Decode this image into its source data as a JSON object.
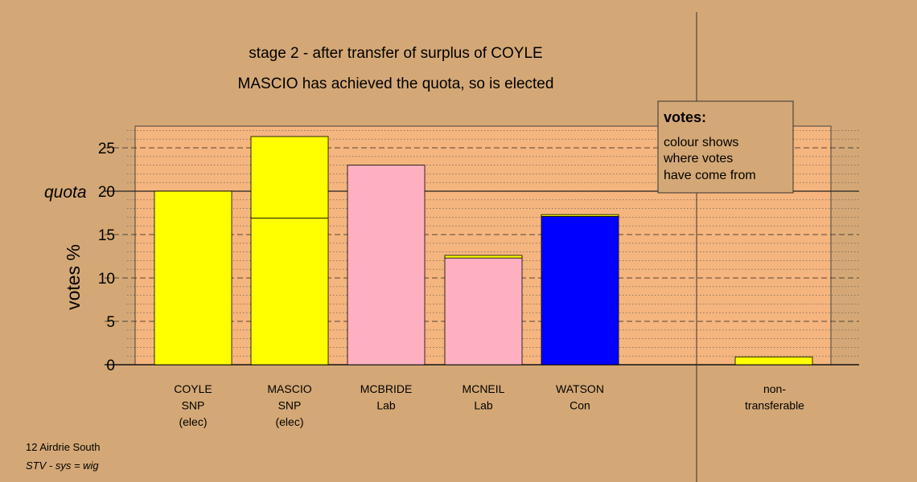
{
  "chart_data": {
    "type": "bar",
    "title": "stage 2 - after transfer of surplus of COYLE",
    "subtitle": "MASCIO has achieved the quota, so is elected",
    "ylabel": "votes %",
    "ylim": [
      0,
      27.5
    ],
    "yticks": [
      0,
      5,
      10,
      15,
      20,
      25
    ],
    "quota_label": "quota",
    "quota_value": 20,
    "grid": "horizontal dotted minor, dashed major",
    "categories": [
      {
        "name": "COYLE",
        "party": "SNP",
        "note": "(elec)"
      },
      {
        "name": "MASCIO",
        "party": "SNP",
        "note": "(elec)"
      },
      {
        "name": "MCBRIDE",
        "party": "Lab",
        "note": ""
      },
      {
        "name": "MCNEIL",
        "party": "Lab",
        "note": ""
      },
      {
        "name": "WATSON",
        "party": "Con",
        "note": ""
      }
    ],
    "nontransferable_label": [
      "non-",
      "transferable"
    ],
    "bars": [
      {
        "segments": [
          {
            "value": 20.0,
            "color": "#ffff00"
          }
        ]
      },
      {
        "segments": [
          {
            "value": 16.9,
            "color": "#ffff00"
          },
          {
            "value": 9.4,
            "color": "#ffff00"
          }
        ]
      },
      {
        "segments": [
          {
            "value": 23.0,
            "color": "#ffb0c0"
          }
        ]
      },
      {
        "segments": [
          {
            "value": 12.3,
            "color": "#ffb0c0"
          },
          {
            "value": 0.3,
            "color": "#ffff00"
          }
        ]
      },
      {
        "segments": [
          {
            "value": 17.1,
            "color": "#0000ff"
          },
          {
            "value": 0.2,
            "color": "#ffff00"
          }
        ]
      }
    ],
    "nontransferable": {
      "value": 0.9,
      "color": "#ffff00"
    },
    "legend": {
      "heading": "votes:",
      "lines": [
        "colour shows",
        "where votes",
        "have come from"
      ],
      "position": "top-right"
    },
    "colors": {
      "background": "#d4a876",
      "plot_area": "#f5b57e"
    }
  },
  "footer": {
    "line1": "12 Airdrie South",
    "line2": "STV - sys = wig"
  }
}
